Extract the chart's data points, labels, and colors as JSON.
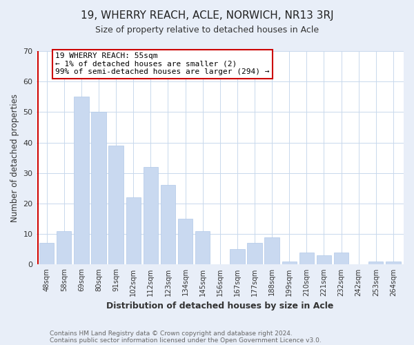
{
  "title": "19, WHERRY REACH, ACLE, NORWICH, NR13 3RJ",
  "subtitle": "Size of property relative to detached houses in Acle",
  "xlabel": "Distribution of detached houses by size in Acle",
  "ylabel": "Number of detached properties",
  "bar_labels": [
    "48sqm",
    "58sqm",
    "69sqm",
    "80sqm",
    "91sqm",
    "102sqm",
    "112sqm",
    "123sqm",
    "134sqm",
    "145sqm",
    "156sqm",
    "167sqm",
    "177sqm",
    "188sqm",
    "199sqm",
    "210sqm",
    "221sqm",
    "232sqm",
    "242sqm",
    "253sqm",
    "264sqm"
  ],
  "bar_values": [
    7,
    11,
    55,
    50,
    39,
    22,
    32,
    26,
    15,
    11,
    0,
    5,
    7,
    9,
    1,
    4,
    3,
    4,
    0,
    1,
    1
  ],
  "bar_color": "#c9d9f0",
  "bar_edgecolor": "#b0c8e8",
  "ylim": [
    0,
    70
  ],
  "yticks": [
    0,
    10,
    20,
    30,
    40,
    50,
    60,
    70
  ],
  "annotation_title": "19 WHERRY REACH: 55sqm",
  "annotation_line1": "← 1% of detached houses are smaller (2)",
  "annotation_line2": "99% of semi-detached houses are larger (294) →",
  "footer1": "Contains HM Land Registry data © Crown copyright and database right 2024.",
  "footer2": "Contains public sector information licensed under the Open Government Licence v3.0.",
  "background_color": "#e8eef8",
  "plot_bg_color": "#ffffff",
  "grid_color": "#c8d8ec",
  "red_line_color": "#cc0000",
  "ann_box_edgecolor": "#cc0000",
  "title_fontsize": 11,
  "subtitle_fontsize": 9
}
